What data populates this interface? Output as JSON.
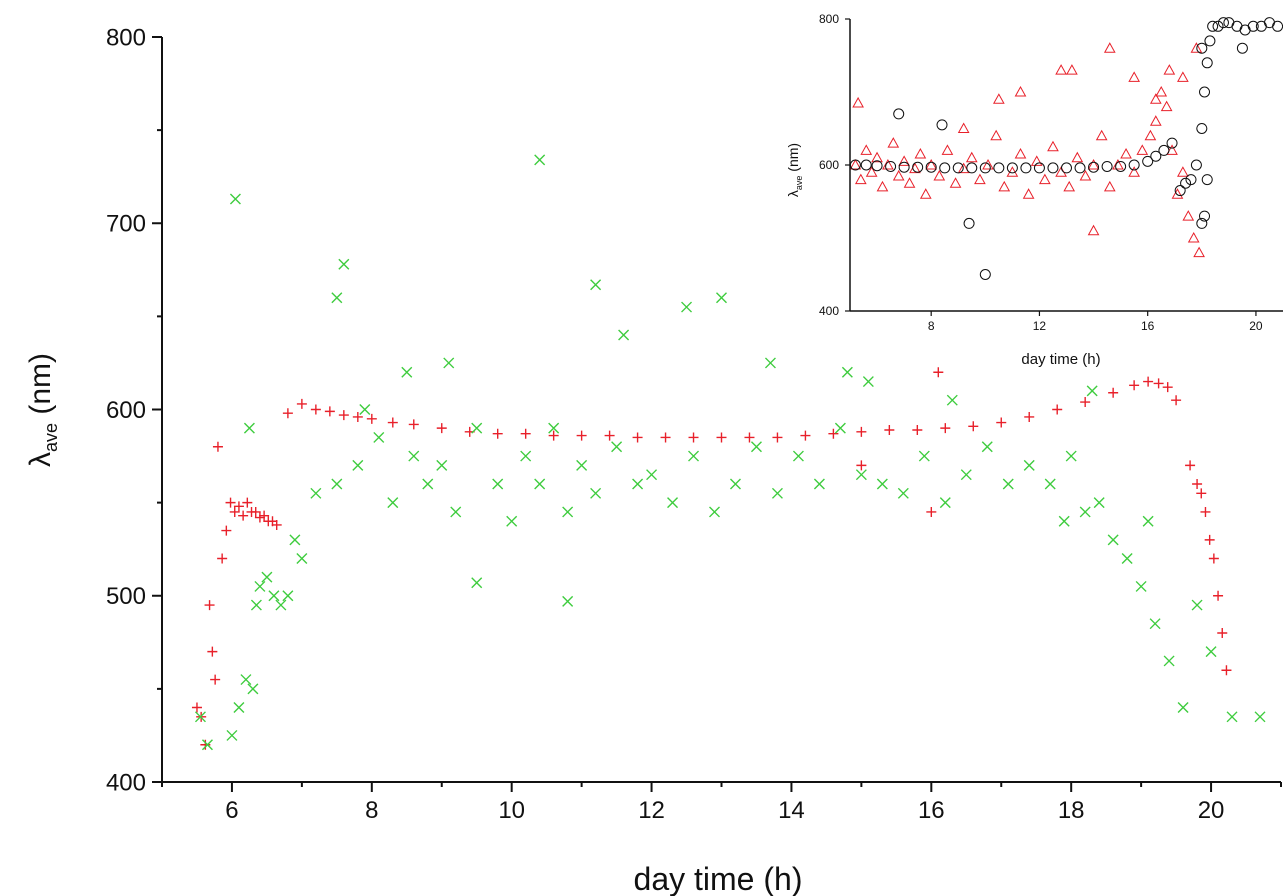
{
  "chart_data": [
    {
      "type": "scatter",
      "title": "",
      "xlabel": "day time (h)",
      "ylabel": "λ",
      "ylabel_sub": "ave",
      "ylabel_unit": " (nm)",
      "xlim": [
        5.0,
        21.0
      ],
      "ylim": [
        400,
        800
      ],
      "xticks": [
        6,
        8,
        10,
        12,
        14,
        16,
        18,
        20
      ],
      "yticks": [
        400,
        500,
        600,
        700,
        800
      ],
      "grid": false,
      "legend": "none",
      "series": [
        {
          "marker": "plus",
          "color": "#e8202a",
          "x": [
            5.5,
            5.56,
            5.62,
            5.68,
            5.72,
            5.76,
            5.8,
            5.86,
            5.92,
            5.98,
            6.04,
            6.1,
            6.16,
            6.22,
            6.28,
            6.34,
            6.4,
            6.46,
            6.52,
            6.58,
            6.64,
            6.8,
            7.0,
            7.2,
            7.4,
            7.6,
            7.8,
            8.0,
            8.3,
            8.6,
            9.0,
            9.4,
            9.8,
            10.2,
            10.6,
            11.0,
            11.4,
            11.8,
            12.2,
            12.6,
            13.0,
            13.4,
            13.8,
            14.2,
            14.6,
            15.0,
            15.4,
            15.8,
            16.2,
            16.6,
            17.0,
            17.4,
            17.8,
            18.2,
            18.6,
            18.9,
            19.1,
            19.25,
            19.38,
            19.5,
            19.7,
            19.8,
            19.86,
            19.92,
            19.98,
            20.04,
            20.1,
            20.16,
            20.22,
            15.0,
            16.0,
            16.1
          ],
          "y": [
            440,
            435,
            420,
            495,
            470,
            455,
            580,
            520,
            535,
            550,
            545,
            548,
            543,
            550,
            545,
            545,
            542,
            543,
            540,
            540,
            538,
            598,
            603,
            600,
            599,
            597,
            596,
            595,
            593,
            592,
            590,
            588,
            587,
            587,
            586,
            586,
            586,
            585,
            585,
            585,
            585,
            585,
            585,
            586,
            587,
            588,
            589,
            589,
            590,
            591,
            593,
            596,
            600,
            604,
            609,
            613,
            615,
            614,
            612,
            605,
            570,
            560,
            555,
            545,
            530,
            520,
            500,
            480,
            460,
            570,
            545,
            620
          ]
        },
        {
          "marker": "x",
          "color": "#3ecc3e",
          "x": [
            5.55,
            5.65,
            6.0,
            6.1,
            6.2,
            6.3,
            6.4,
            6.5,
            6.6,
            6.7,
            6.8,
            6.9,
            7.0,
            7.2,
            7.5,
            7.8,
            7.9,
            8.1,
            8.3,
            8.6,
            8.8,
            9.0,
            9.2,
            9.5,
            9.8,
            10.0,
            10.2,
            10.4,
            10.6,
            10.8,
            11.0,
            11.2,
            11.5,
            11.8,
            12.0,
            12.3,
            12.6,
            12.9,
            13.2,
            13.5,
            13.8,
            14.1,
            14.4,
            14.7,
            15.0,
            15.3,
            15.6,
            15.9,
            16.2,
            16.5,
            16.8,
            17.1,
            17.4,
            17.7,
            18.0,
            18.2,
            18.4,
            18.6,
            18.8,
            19.0,
            19.2,
            19.4,
            19.6,
            19.8,
            20.0,
            20.3,
            20.7,
            7.6,
            7.5,
            6.05,
            10.4,
            11.2,
            9.1,
            12.5,
            13.0,
            8.5,
            14.8,
            16.3,
            18.3,
            19.1,
            6.25,
            6.35,
            10.8,
            9.5,
            17.9,
            11.6,
            15.1,
            13.7
          ],
          "y": [
            435,
            420,
            425,
            440,
            455,
            450,
            505,
            510,
            500,
            495,
            500,
            530,
            520,
            555,
            560,
            570,
            600,
            585,
            550,
            575,
            560,
            570,
            545,
            590,
            560,
            540,
            575,
            560,
            590,
            545,
            570,
            555,
            580,
            560,
            565,
            550,
            575,
            545,
            560,
            580,
            555,
            575,
            560,
            590,
            565,
            560,
            555,
            575,
            550,
            565,
            580,
            560,
            570,
            560,
            575,
            545,
            550,
            530,
            520,
            505,
            485,
            465,
            440,
            495,
            470,
            435,
            435,
            678,
            660,
            713,
            734,
            667,
            625,
            655,
            660,
            620,
            620,
            605,
            610,
            540,
            590,
            495,
            497,
            507,
            540,
            640,
            615,
            625
          ]
        }
      ]
    },
    {
      "type": "scatter",
      "title": "",
      "xlabel": "day time (h)",
      "ylabel": "λ",
      "ylabel_sub": "ave",
      "ylabel_unit": " (nm)",
      "xlim": [
        5.0,
        21.0
      ],
      "ylim": [
        400,
        800
      ],
      "xticks": [
        8,
        12,
        16,
        20
      ],
      "yticks": [
        400,
        600,
        800
      ],
      "grid": false,
      "legend": "none",
      "series": [
        {
          "marker": "triangle",
          "color": "#e8202a",
          "x": [
            5.2,
            5.4,
            5.6,
            5.8,
            6.0,
            6.2,
            6.4,
            6.6,
            6.8,
            7.0,
            7.2,
            7.4,
            7.6,
            7.8,
            8.0,
            8.3,
            8.6,
            8.9,
            9.2,
            9.5,
            9.8,
            10.1,
            10.4,
            10.7,
            11.0,
            11.3,
            11.6,
            11.9,
            12.2,
            12.5,
            12.8,
            13.1,
            13.4,
            13.7,
            14.0,
            14.3,
            14.6,
            14.9,
            15.2,
            15.5,
            15.8,
            16.1,
            16.3,
            16.5,
            16.7,
            16.9,
            17.1,
            17.3,
            17.5,
            17.7,
            17.9,
            12.8,
            13.2,
            14.6,
            15.5,
            16.3,
            10.5,
            11.3,
            9.2,
            17.8,
            17.3,
            14.0,
            5.3,
            16.8
          ],
          "y": [
            600,
            580,
            620,
            590,
            610,
            570,
            600,
            630,
            585,
            605,
            575,
            595,
            615,
            560,
            600,
            585,
            620,
            575,
            595,
            610,
            580,
            600,
            640,
            570,
            590,
            615,
            560,
            605,
            580,
            625,
            590,
            570,
            610,
            585,
            600,
            640,
            570,
            600,
            615,
            590,
            620,
            640,
            660,
            700,
            680,
            620,
            560,
            590,
            530,
            500,
            480,
            730,
            730,
            760,
            720,
            690,
            690,
            700,
            650,
            760,
            720,
            510,
            685,
            730
          ]
        },
        {
          "marker": "circle",
          "color": "#111111",
          "x": [
            5.2,
            5.6,
            6.0,
            6.5,
            7.0,
            7.5,
            8.0,
            8.5,
            9.0,
            9.5,
            10.0,
            10.5,
            11.0,
            11.5,
            12.0,
            12.5,
            13.0,
            13.5,
            14.0,
            14.5,
            15.0,
            15.5,
            16.0,
            16.3,
            16.6,
            16.9,
            17.2,
            17.4,
            17.6,
            17.8,
            18.0,
            18.1,
            18.2,
            18.3,
            18.4,
            18.6,
            18.8,
            19.0,
            19.3,
            19.6,
            19.9,
            20.2,
            20.5,
            20.8,
            6.8,
            8.4,
            9.4,
            10.0,
            18.0,
            18.1,
            18.2,
            18.0,
            19.5
          ],
          "y": [
            600,
            600,
            599,
            598,
            597,
            597,
            597,
            596,
            596,
            596,
            596,
            596,
            596,
            596,
            596,
            596,
            596,
            596,
            597,
            598,
            598,
            600,
            605,
            612,
            620,
            630,
            565,
            575,
            580,
            600,
            650,
            700,
            740,
            770,
            790,
            790,
            795,
            795,
            790,
            785,
            790,
            790,
            795,
            790,
            670,
            655,
            520,
            450,
            520,
            530,
            580,
            760,
            760
          ]
        }
      ]
    }
  ]
}
